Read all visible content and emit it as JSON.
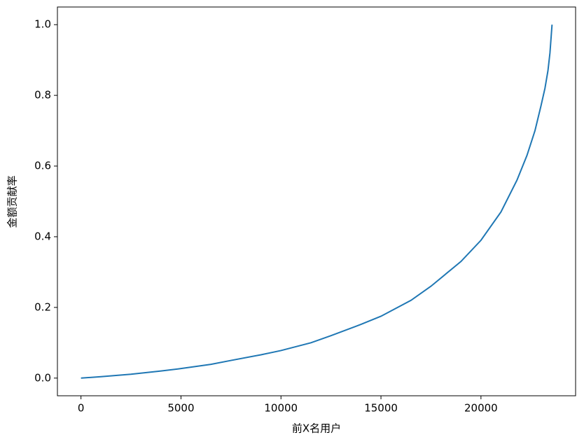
{
  "chart_data": {
    "type": "line",
    "xlabel": "前X名用户",
    "ylabel": "金额贡献率",
    "x": [
      0,
      1000,
      2500,
      4000,
      5000,
      6500,
      7500,
      9000,
      10000,
      11500,
      12500,
      14000,
      15000,
      16500,
      17500,
      19000,
      20000,
      21000,
      21800,
      22300,
      22700,
      23000,
      23200,
      23350,
      23450,
      23554
    ],
    "series": [
      {
        "name": "金额贡献率",
        "color": "#1f77b4",
        "values": [
          0,
          0.004,
          0.011,
          0.02,
          0.027,
          0.039,
          0.05,
          0.066,
          0.078,
          0.1,
          0.12,
          0.152,
          0.175,
          0.22,
          0.26,
          0.33,
          0.39,
          0.47,
          0.56,
          0.63,
          0.7,
          0.77,
          0.82,
          0.87,
          0.92,
          1.0
        ]
      }
    ],
    "xlim": [
      -1178,
      24732
    ],
    "ylim": [
      -0.05,
      1.05
    ],
    "xticks": [
      0,
      5000,
      10000,
      15000,
      20000
    ],
    "yticks": [
      {
        "value": 0,
        "label": "0.0"
      },
      0.2,
      0.4,
      0.6,
      0.8,
      {
        "value": 1,
        "label": "1.0"
      }
    ]
  }
}
